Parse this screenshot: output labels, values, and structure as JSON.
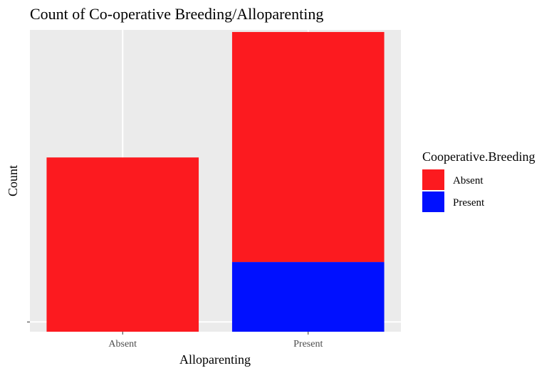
{
  "chart_data": {
    "type": "stacked-bar",
    "title": "Count of Co-operative Breeding/Alloparenting",
    "x_label": "Alloparenting",
    "y_label": "Count",
    "categories": [
      "Absent",
      "Present"
    ],
    "series": [
      {
        "name": "Absent",
        "color": "#fc1a1f",
        "values": [
          25,
          33
        ]
      },
      {
        "name": "Present",
        "color": "#0010ff",
        "values": [
          null,
          10
        ]
      }
    ],
    "ylim": [
      0,
      43.3
    ],
    "yticks": [
      {
        "value": 1.4,
        "label": null
      }
    ],
    "legend_title": "Cooperative.Breeding",
    "legend": "right",
    "grid": true
  }
}
